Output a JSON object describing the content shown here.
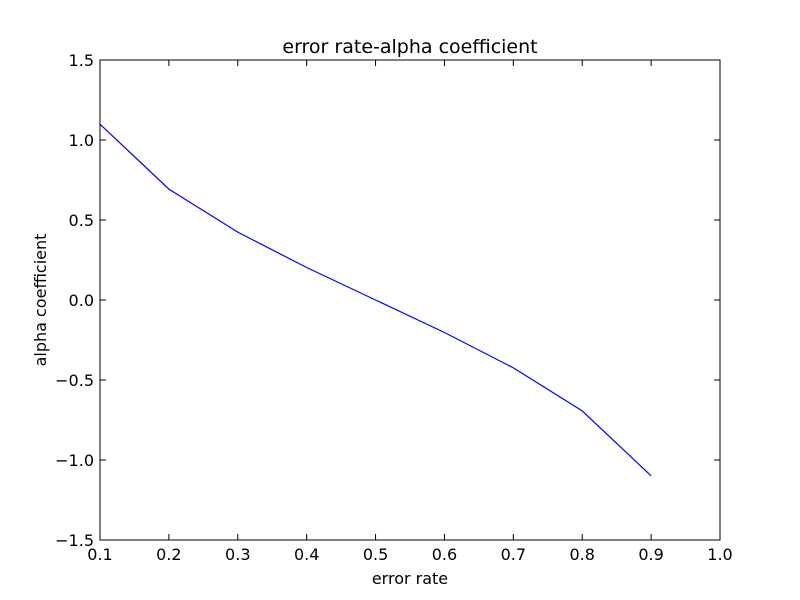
{
  "chart_data": {
    "type": "line",
    "title": "error rate-alpha coefficient",
    "xlabel": "error rate",
    "ylabel": "alpha coefficient",
    "xlim": [
      0.1,
      1.0
    ],
    "ylim": [
      -1.5,
      1.5
    ],
    "xticks": [
      0.1,
      0.2,
      0.3,
      0.4,
      0.5,
      0.6,
      0.7,
      0.8,
      0.9,
      1.0
    ],
    "xtick_labels": [
      "0.1",
      "0.2",
      "0.3",
      "0.4",
      "0.5",
      "0.6",
      "0.7",
      "0.8",
      "0.9",
      "1.0"
    ],
    "yticks": [
      -1.5,
      -1.0,
      -0.5,
      0.0,
      0.5,
      1.0,
      1.5
    ],
    "ytick_labels": [
      "−1.5",
      "−1.0",
      "−0.5",
      "0.0",
      "0.5",
      "1.0",
      "1.5"
    ],
    "grid": false,
    "series": [
      {
        "color": "#0000ff",
        "x": [
          0.1,
          0.2,
          0.3,
          0.4,
          0.5,
          0.6,
          0.7,
          0.8,
          0.9
        ],
        "y": [
          1.099,
          0.693,
          0.424,
          0.203,
          0.0,
          -0.203,
          -0.424,
          -0.693,
          -1.099
        ]
      }
    ]
  }
}
